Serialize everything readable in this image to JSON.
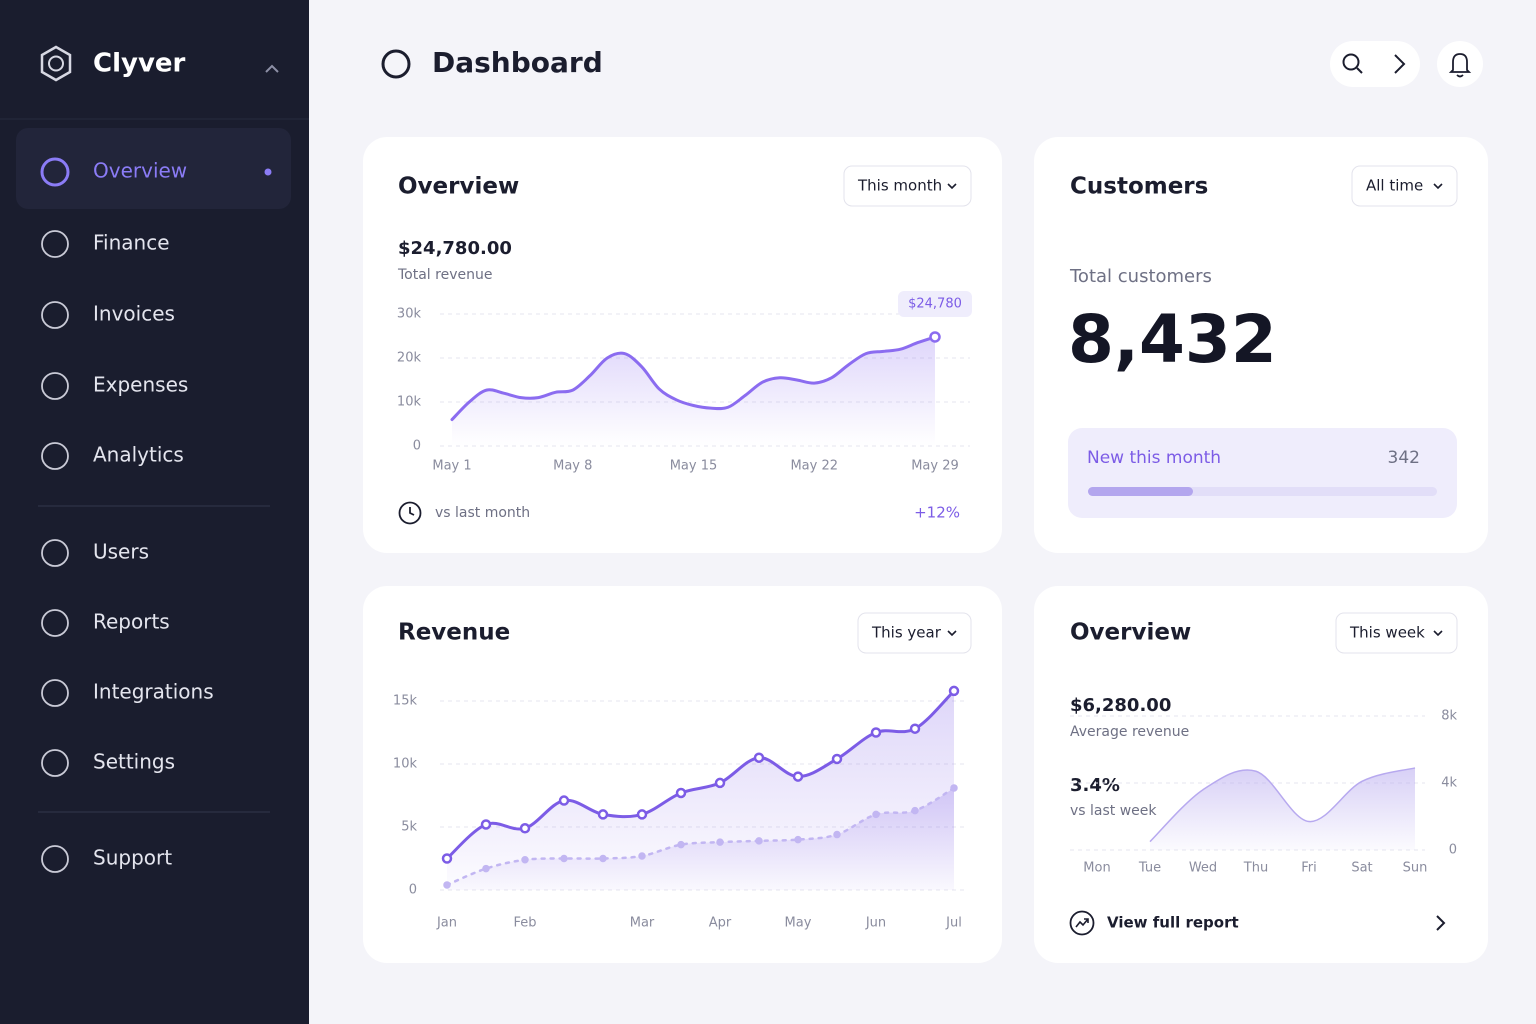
{
  "sidebar": {
    "brand": "Clyver",
    "nav": [
      "Overview",
      "Finance",
      "Invoices",
      "Expenses",
      "Analytics"
    ],
    "nav2": [
      "Users",
      "Reports",
      "Integrations",
      "Settings"
    ],
    "support": "Support"
  },
  "header": {
    "title": "Dashboard"
  },
  "overview_card": {
    "title": "Overview",
    "filter": "This month",
    "amount": "$24,780.00",
    "amount_label": "Total revenue",
    "footer_label": "vs last month",
    "footer_change": "+12%",
    "chart_data": {
      "type": "line",
      "categories": [
        "May 1",
        null,
        null,
        null,
        null,
        null,
        null,
        "May 8",
        null,
        null,
        null,
        null,
        null,
        null,
        "May 15",
        null,
        null,
        null,
        null,
        null,
        null,
        "May 22",
        null,
        null,
        null,
        null,
        null,
        null,
        "May 29"
      ],
      "values": [
        6000,
        10000,
        12700,
        12000,
        11000,
        11000,
        12200,
        12700,
        16000,
        20000,
        21000,
        18000,
        13000,
        10500,
        9200,
        8600,
        8800,
        11500,
        14500,
        15500,
        15000,
        14300,
        15500,
        18500,
        21000,
        21500,
        22000,
        23500,
        24780
      ],
      "value_labels": [
        null,
        null,
        null,
        null,
        null,
        null,
        null,
        null,
        null,
        null,
        null,
        null,
        null,
        null,
        null,
        null,
        null,
        null,
        null,
        null,
        null,
        null,
        null,
        null,
        null,
        null,
        null,
        null,
        "$24,780"
      ],
      "color": "#8b6cf0",
      "ylim": [
        0,
        30000
      ],
      "yticks": [
        0,
        {
          "value": 10000,
          "label": "10k"
        },
        {
          "value": 20000,
          "label": "20k"
        },
        {
          "value": 30000,
          "label": "30k"
        }
      ],
      "grid": true
    }
  },
  "customers_card": {
    "title": "Customers",
    "filter": "All time",
    "label": "Total customers",
    "total": "8,432",
    "new_label": "New this month",
    "new_value": "342"
  },
  "revenue_card": {
    "title": "Revenue",
    "filter": "This year",
    "chart_data": {
      "type": "line",
      "categories": [
        "Jan",
        null,
        "Feb",
        null,
        null,
        "Mar",
        null,
        "Apr",
        null,
        "May",
        null,
        "Jun",
        null,
        "Jul"
      ],
      "series": [
        {
          "color": "#7c5ce6",
          "values": [
            2500,
            5200,
            4900,
            7100,
            6000,
            6000,
            7700,
            8500,
            10500,
            9000,
            10400,
            12500,
            12800,
            15800
          ]
        },
        {
          "color": "#c2b6f2",
          "dashed": true,
          "values": [
            400,
            1700,
            2400,
            2500,
            2500,
            2700,
            3600,
            3800,
            3900,
            4000,
            4400,
            6000,
            6300,
            8100
          ]
        }
      ],
      "ylim": [
        0,
        16000
      ],
      "yticks": [
        0,
        {
          "value": 5000,
          "label": "5k"
        },
        {
          "value": 10000,
          "label": "10k"
        },
        {
          "value": 15000,
          "label": "15k"
        }
      ],
      "grid": true
    }
  },
  "weekly_card": {
    "title": "Overview",
    "filter": "This week",
    "amount": "$6,280.00",
    "amount_label": "Average revenue",
    "change": "3.4%",
    "change_label": "vs last week",
    "link": "View full report",
    "chart_data": {
      "type": "area",
      "categories": [
        "Mon",
        "Tue",
        "Wed",
        "Thu",
        "Fri",
        "Sat",
        "Sun"
      ],
      "values": [
        null,
        500,
        3600,
        4700,
        1700,
        4100,
        4900
      ],
      "color": "#b7a9ef",
      "ylim": [
        0,
        8000
      ],
      "yticks": [
        0,
        {
          "value": 4000,
          "label": "4k"
        },
        {
          "value": 8000,
          "label": "8k"
        }
      ],
      "y_axis_position": "right",
      "grid": true
    }
  }
}
